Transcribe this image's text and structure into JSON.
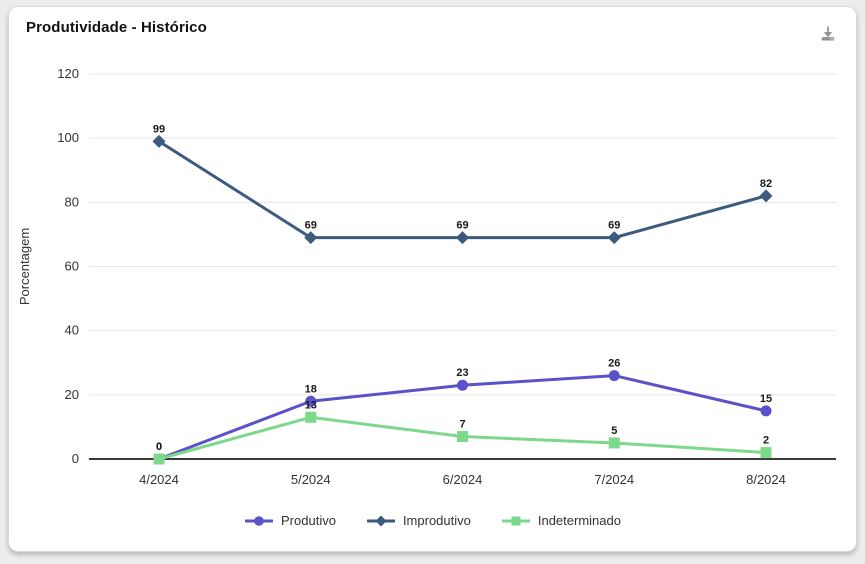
{
  "header": {
    "title": "Produtividade - Histórico",
    "download_tooltip": "Download"
  },
  "chart_data": {
    "type": "line",
    "title": "Produtividade - Histórico",
    "xlabel": "",
    "ylabel": "Porcentagem",
    "ylim": [
      0,
      120
    ],
    "yticks": [
      0,
      20,
      40,
      60,
      80,
      100,
      120
    ],
    "grid": true,
    "legend_position": "bottom",
    "point_labels": true,
    "categories": [
      "4/2024",
      "5/2024",
      "6/2024",
      "7/2024",
      "8/2024"
    ],
    "series": [
      {
        "name": "Produtivo",
        "marker": "circle",
        "color": "#5b52c7",
        "values": [
          0,
          18,
          23,
          26,
          15
        ]
      },
      {
        "name": "Improdutivo",
        "marker": "diamond",
        "color": "#3d5a80",
        "values": [
          99,
          69,
          69,
          69,
          82
        ]
      },
      {
        "name": "Indeterminado",
        "marker": "square",
        "color": "#7cd98b",
        "values": [
          0,
          13,
          7,
          5,
          2
        ]
      }
    ]
  },
  "colors": {
    "page_bg": "#ececec",
    "card_bg": "#ffffff",
    "card_border": "#d8d8d8",
    "grid": "#e7e7e7",
    "zero_axis": "#3a3a3a",
    "tick_text": "#333333",
    "value_label": "#1a1a1a",
    "icon": "#8f8f8f"
  }
}
